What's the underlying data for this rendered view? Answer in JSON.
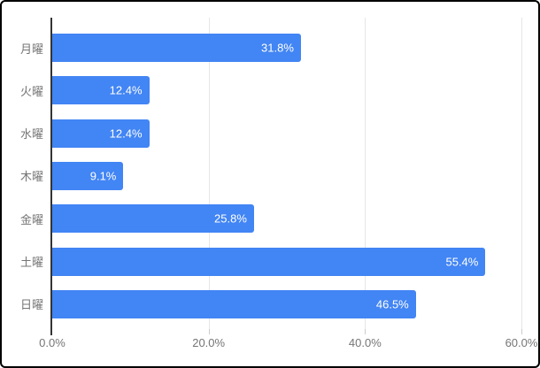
{
  "chart_data": {
    "type": "bar",
    "orientation": "horizontal",
    "title": "",
    "xlabel": "",
    "ylabel": "",
    "categories": [
      "月曜",
      "火曜",
      "水曜",
      "木曜",
      "金曜",
      "土曜",
      "日曜"
    ],
    "values": [
      31.8,
      12.4,
      12.4,
      9.1,
      25.8,
      55.4,
      46.5
    ],
    "value_labels": [
      "31.8%",
      "12.4%",
      "12.4%",
      "9.1%",
      "25.8%",
      "55.4%",
      "46.5%"
    ],
    "xlim": [
      0,
      60
    ],
    "x_ticks": [
      0,
      20,
      40,
      60
    ],
    "x_tick_labels": [
      "0.0%",
      "20.0%",
      "40.0%",
      "60.0%"
    ],
    "grid": "vertical-only",
    "legend": "none",
    "colors": {
      "bar": "#4285F4",
      "value_label": "#FFFFFF",
      "axis_text": "#757575",
      "gridline": "#E6E6E6",
      "tick": "#CCCCCC",
      "axis_line": "#333333",
      "background": "#FFFFFF",
      "frame_border": "#000000"
    }
  }
}
